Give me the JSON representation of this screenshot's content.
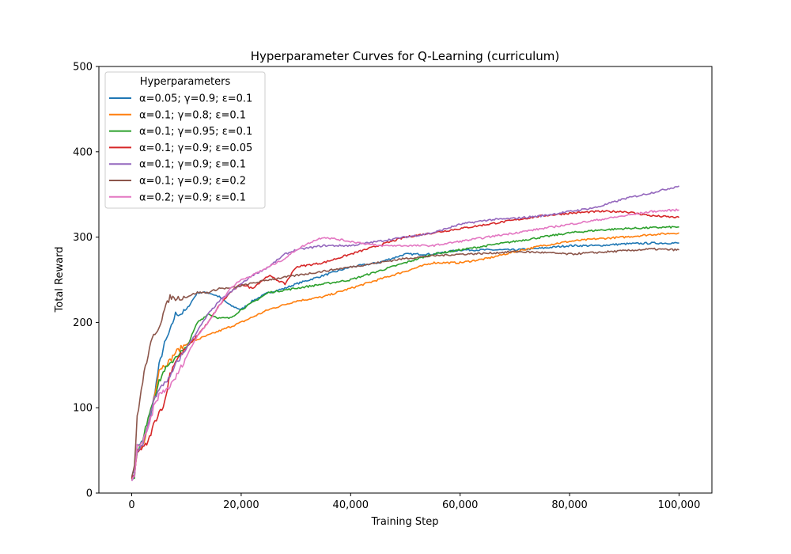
{
  "chart_data": {
    "type": "line",
    "title": "Hyperparameter Curves for Q-Learning (curriculum)",
    "xlabel": "Training Step",
    "ylabel": "Total Reward",
    "xlim": [
      -6000,
      106000
    ],
    "ylim": [
      0,
      500
    ],
    "xticks": [
      0,
      20000,
      40000,
      60000,
      80000,
      100000
    ],
    "xtick_labels": [
      "0",
      "20,000",
      "40,000",
      "60,000",
      "80,000",
      "100,000"
    ],
    "yticks": [
      0,
      100,
      200,
      300,
      400,
      500
    ],
    "ytick_labels": [
      "0",
      "100",
      "200",
      "300",
      "400",
      "500"
    ],
    "grid": false,
    "legend": {
      "title": "Hyperparameters",
      "placement": "top-left"
    },
    "series": [
      {
        "name": "α=0.05; γ=0.9; ε=0.1",
        "color": "#1f77b4",
        "x": [
          0,
          500,
          1000,
          2000,
          3000,
          4000,
          5000,
          6000,
          7000,
          8000,
          9000,
          10000,
          12000,
          14000,
          16000,
          18000,
          20000,
          22000,
          25000,
          28000,
          30000,
          35000,
          40000,
          45000,
          50000,
          55000,
          60000,
          65000,
          70000,
          75000,
          80000,
          85000,
          90000,
          95000,
          100000
        ],
        "y": [
          20,
          25,
          55,
          60,
          75,
          110,
          150,
          175,
          190,
          210,
          210,
          215,
          235,
          235,
          230,
          220,
          215,
          225,
          235,
          240,
          245,
          255,
          265,
          270,
          280,
          280,
          285,
          285,
          285,
          287,
          290,
          290,
          292,
          293,
          293
        ]
      },
      {
        "name": "α=0.1; γ=0.8; ε=0.1",
        "color": "#ff7f0e",
        "x": [
          0,
          500,
          1000,
          2000,
          3000,
          4000,
          5000,
          6000,
          7000,
          8000,
          10000,
          12000,
          14000,
          16000,
          18000,
          20000,
          25000,
          30000,
          35000,
          40000,
          45000,
          50000,
          55000,
          60000,
          65000,
          70000,
          75000,
          80000,
          85000,
          90000,
          95000,
          100000
        ],
        "y": [
          15,
          20,
          45,
          55,
          80,
          110,
          145,
          150,
          155,
          165,
          175,
          180,
          185,
          190,
          195,
          200,
          215,
          225,
          230,
          240,
          250,
          260,
          270,
          270,
          275,
          283,
          290,
          295,
          298,
          300,
          303,
          305
        ]
      },
      {
        "name": "α=0.1; γ=0.95; ε=0.1",
        "color": "#2ca02c",
        "x": [
          0,
          500,
          1000,
          2000,
          3000,
          4000,
          5000,
          6000,
          7000,
          8000,
          10000,
          12000,
          14000,
          16000,
          18000,
          20000,
          25000,
          30000,
          35000,
          40000,
          45000,
          50000,
          55000,
          60000,
          65000,
          70000,
          75000,
          80000,
          85000,
          90000,
          95000,
          100000
        ],
        "y": [
          15,
          20,
          50,
          60,
          90,
          110,
          130,
          145,
          150,
          160,
          170,
          200,
          210,
          205,
          205,
          215,
          235,
          240,
          245,
          250,
          260,
          270,
          280,
          285,
          290,
          295,
          300,
          305,
          308,
          310,
          311,
          312
        ]
      },
      {
        "name": "α=0.1; γ=0.9; ε=0.05",
        "color": "#d62728",
        "x": [
          0,
          500,
          1000,
          2000,
          3000,
          4000,
          5000,
          6000,
          7000,
          8000,
          10000,
          12000,
          14000,
          16000,
          18000,
          20000,
          22000,
          25000,
          28000,
          30000,
          35000,
          40000,
          45000,
          50000,
          55000,
          60000,
          65000,
          70000,
          75000,
          80000,
          85000,
          90000,
          95000,
          100000
        ],
        "y": [
          15,
          20,
          50,
          52,
          60,
          80,
          95,
          105,
          140,
          155,
          170,
          185,
          200,
          220,
          235,
          245,
          240,
          255,
          245,
          265,
          270,
          280,
          290,
          300,
          305,
          310,
          315,
          320,
          325,
          328,
          330,
          330,
          325,
          323
        ]
      },
      {
        "name": "α=0.1; γ=0.9; ε=0.1",
        "color": "#9467bd",
        "x": [
          0,
          500,
          1000,
          2000,
          3000,
          4000,
          5000,
          6000,
          7000,
          8000,
          10000,
          12000,
          14000,
          16000,
          18000,
          20000,
          22000,
          25000,
          28000,
          30000,
          35000,
          40000,
          45000,
          50000,
          55000,
          60000,
          65000,
          70000,
          75000,
          80000,
          85000,
          90000,
          95000,
          100000
        ],
        "y": [
          15,
          20,
          50,
          55,
          80,
          110,
          120,
          130,
          135,
          150,
          170,
          190,
          210,
          225,
          235,
          245,
          255,
          265,
          280,
          285,
          290,
          290,
          295,
          300,
          305,
          315,
          320,
          322,
          325,
          330,
          335,
          345,
          352,
          360
        ]
      },
      {
        "name": "α=0.1; γ=0.9; ε=0.2",
        "color": "#8c564b",
        "x": [
          0,
          500,
          1000,
          1500,
          2000,
          2500,
          3000,
          3500,
          4000,
          5000,
          6000,
          7000,
          8000,
          10000,
          12000,
          14000,
          16000,
          18000,
          20000,
          25000,
          30000,
          35000,
          40000,
          45000,
          50000,
          55000,
          60000,
          65000,
          70000,
          75000,
          80000,
          85000,
          90000,
          95000,
          100000
        ],
        "y": [
          20,
          30,
          90,
          110,
          130,
          150,
          160,
          175,
          185,
          195,
          215,
          230,
          228,
          230,
          235,
          235,
          240,
          240,
          243,
          250,
          255,
          260,
          265,
          270,
          275,
          278,
          280,
          281,
          283,
          282,
          280,
          282,
          284,
          286,
          285
        ]
      },
      {
        "name": "α=0.2; γ=0.9; ε=0.1",
        "color": "#e377c2",
        "x": [
          0,
          500,
          1000,
          2000,
          3000,
          4000,
          5000,
          6000,
          7000,
          8000,
          10000,
          12000,
          14000,
          16000,
          18000,
          20000,
          22000,
          25000,
          28000,
          30000,
          33000,
          35000,
          40000,
          45000,
          50000,
          55000,
          60000,
          65000,
          70000,
          75000,
          80000,
          85000,
          90000,
          95000,
          100000
        ],
        "y": [
          15,
          18,
          55,
          60,
          75,
          100,
          115,
          120,
          125,
          135,
          160,
          185,
          200,
          220,
          240,
          250,
          255,
          265,
          275,
          285,
          295,
          300,
          295,
          290,
          290,
          290,
          295,
          300,
          305,
          310,
          315,
          320,
          325,
          330,
          332
        ]
      }
    ]
  }
}
